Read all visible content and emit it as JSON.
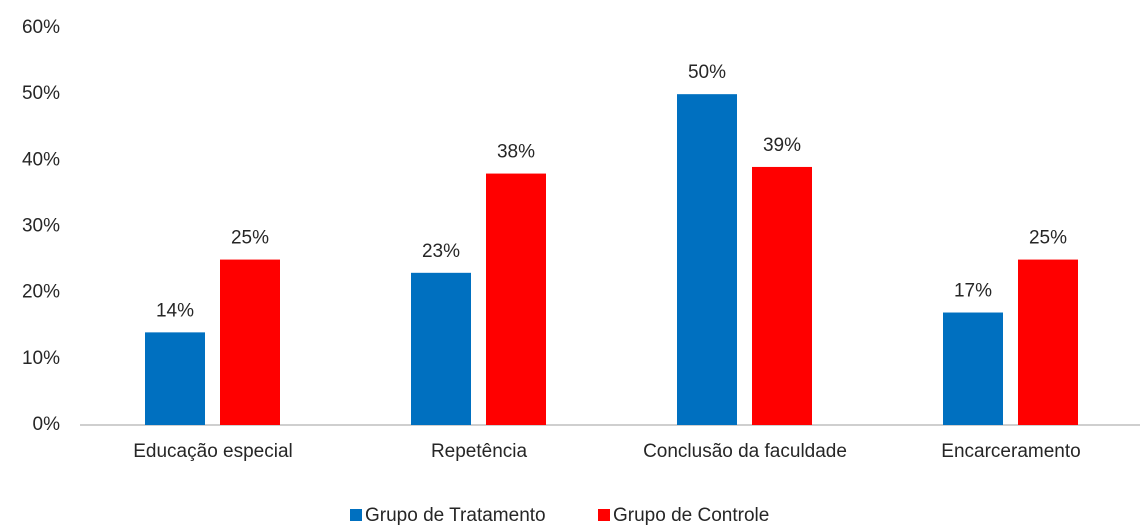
{
  "chart_data": {
    "type": "bar",
    "categories": [
      "Educação especial",
      "Repetência",
      "Conclusão da faculdade",
      "Encarceramento"
    ],
    "series": [
      {
        "name": "Grupo de Tratamento",
        "color": "#0070c0",
        "values": [
          14,
          23,
          50,
          17
        ],
        "value_labels": [
          "14%",
          "23%",
          "50%",
          "17%"
        ]
      },
      {
        "name": "Grupo de Controle",
        "color": "#ff0000",
        "values": [
          25,
          38,
          39,
          25
        ],
        "value_labels": [
          "25%",
          "38%",
          "39%",
          "25%"
        ]
      }
    ],
    "ylim": [
      0,
      60
    ],
    "yticks": [
      {
        "value": 0,
        "label": "0%"
      },
      {
        "value": 10,
        "label": "10%"
      },
      {
        "value": 20,
        "label": "20%"
      },
      {
        "value": 30,
        "label": "30%"
      },
      {
        "value": 40,
        "label": "40%"
      },
      {
        "value": 50,
        "label": "50%"
      },
      {
        "value": 60,
        "label": "60%"
      }
    ],
    "grid": false,
    "legend": "bottom"
  }
}
